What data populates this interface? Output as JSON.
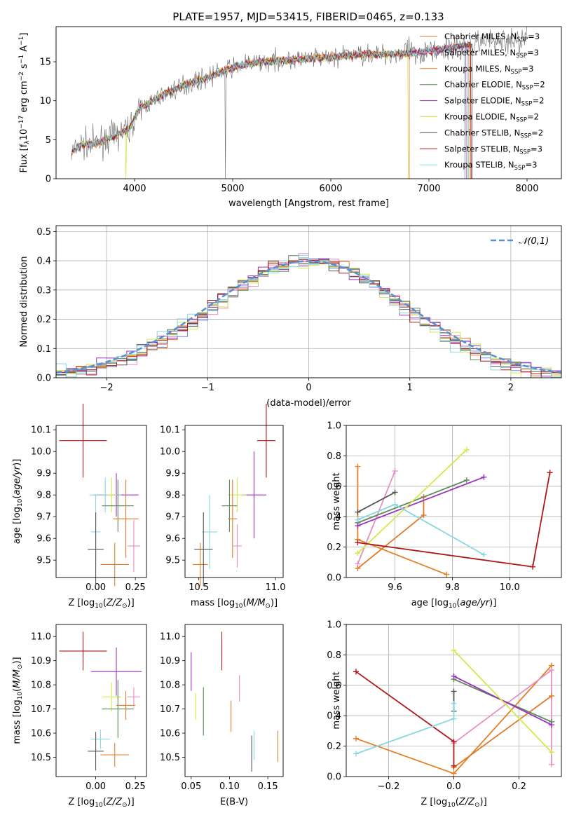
{
  "figure": {
    "title": "PLATE=1957, MJD=53415, FIBERID=0465, z=0.133"
  },
  "models": [
    {
      "name": "Chabrier MILES",
      "nssp": "3",
      "color": "#e67e22"
    },
    {
      "name": "Salpeter MILES",
      "nssp": "3",
      "color": "#e88fc4"
    },
    {
      "name": "Kroupa MILES",
      "nssp": "3",
      "color": "#e07b2a"
    },
    {
      "name": "Chabrier ELODIE",
      "nssp": "2",
      "color": "#5a8a5a"
    },
    {
      "name": "Salpeter ELODIE",
      "nssp": "2",
      "color": "#9b30c0"
    },
    {
      "name": "Kroupa ELODIE",
      "nssp": "2",
      "color": "#d4e84a"
    },
    {
      "name": "Chabrier STELIB",
      "nssp": "2",
      "color": "#555555"
    },
    {
      "name": "Salpeter STELIB",
      "nssp": "3",
      "color": "#b01818"
    },
    {
      "name": "Kroupa STELIB",
      "nssp": "3",
      "color": "#88d8e0"
    }
  ],
  "chart_data": [
    {
      "id": "spectrum",
      "type": "line",
      "xlabel": "wavelength [Angstrom, rest frame]",
      "ylabel": "Flux [f_λ10^-17 erg cm^-2 s^-1 A^-1]",
      "xlim": [
        3200,
        8350
      ],
      "ylim": [
        0,
        19.5
      ],
      "xticks": [
        4000,
        5000,
        6000,
        7000,
        8000
      ],
      "yticks": [
        0,
        5,
        10,
        15
      ],
      "grid": false,
      "legend": "top-right",
      "continuum": [
        [
          3350,
          3.2
        ],
        [
          3450,
          4.3
        ],
        [
          3600,
          4.5
        ],
        [
          3800,
          5.5
        ],
        [
          3950,
          6.5
        ],
        [
          4050,
          9.0
        ],
        [
          4300,
          10.8
        ],
        [
          4500,
          12.0
        ],
        [
          4700,
          12.8
        ],
        [
          4900,
          13.8
        ],
        [
          5100,
          14.6
        ],
        [
          5300,
          15.0
        ],
        [
          5500,
          15.2
        ],
        [
          5700,
          15.3
        ],
        [
          5900,
          15.5
        ],
        [
          6100,
          15.7
        ],
        [
          6300,
          15.9
        ],
        [
          6500,
          16.0
        ],
        [
          6700,
          16.0
        ],
        [
          6900,
          16.2
        ],
        [
          7100,
          16.5
        ],
        [
          7300,
          17.0
        ],
        [
          7500,
          17.3
        ],
        [
          7700,
          17.6
        ],
        [
          7900,
          17.8
        ],
        [
          8000,
          17.9
        ]
      ]
    },
    {
      "id": "residuals",
      "type": "histogram",
      "xlabel": "(data-model)/error",
      "ylabel": "Normed distribution",
      "xlim": [
        -2.5,
        2.5
      ],
      "ylim": [
        0,
        0.52
      ],
      "xticks": [
        -2,
        -1,
        0,
        1,
        2
      ],
      "yticks": [
        0.0,
        0.1,
        0.2,
        0.3,
        0.4,
        0.5
      ],
      "grid": true,
      "reference_label": "𝒩(0,1)",
      "legend": "top-right"
    },
    {
      "id": "age_vs_Z",
      "type": "errorbar",
      "xlabel": "Z [log10(Z/Z⊙)]",
      "ylabel": "age  [log10(age/yr)]",
      "xlim": [
        -0.25,
        0.32
      ],
      "ylim": [
        9.42,
        10.12
      ],
      "xticks": [
        0.0,
        0.25
      ],
      "yticks": [
        9.5,
        9.6,
        9.7,
        9.8,
        9.9,
        10.0,
        10.1
      ],
      "points": [
        {
          "x": -0.08,
          "y": 10.05,
          "xerr": 0.15,
          "yerr": 0.17,
          "model": 7
        },
        {
          "x": 0.13,
          "y": 9.8,
          "xerr": 0.14,
          "yerr": 0.1,
          "model": 4
        },
        {
          "x": 0.06,
          "y": 9.8,
          "xerr": 0.1,
          "yerr": 0.08,
          "model": 8
        },
        {
          "x": 0.1,
          "y": 9.8,
          "xerr": 0.03,
          "yerr": 0.08,
          "model": 5
        },
        {
          "x": 0.14,
          "y": 9.75,
          "xerr": 0.1,
          "yerr": 0.12,
          "model": 3
        },
        {
          "x": 0.19,
          "y": 9.69,
          "xerr": 0.08,
          "yerr": 0.18,
          "model": 2
        },
        {
          "x": 0.24,
          "y": 9.565,
          "xerr": 0.04,
          "yerr": 0.12,
          "model": 1
        },
        {
          "x": 0.0,
          "y": 9.63,
          "xerr": 0.03,
          "yerr": 0.17,
          "model": 8
        },
        {
          "x": 0.12,
          "y": 9.48,
          "xerr": 0.09,
          "yerr": 0.1,
          "model": 0
        },
        {
          "x": 0.0,
          "y": 9.55,
          "xerr": 0.05,
          "yerr": 0.17,
          "model": 6
        }
      ]
    },
    {
      "id": "age_vs_mass",
      "type": "errorbar",
      "xlabel": "mass [log10(M/M⊙)]",
      "ylabel": "",
      "xlim": [
        10.41,
        11.05
      ],
      "ylim": [
        9.42,
        10.12
      ],
      "xticks": [
        10.5,
        11.0
      ],
      "yticks": [
        9.5,
        9.6,
        9.7,
        9.8,
        9.9,
        10.0,
        10.1
      ],
      "points": [
        {
          "x": 10.94,
          "y": 10.05,
          "xerr": 0.06,
          "yerr": 0.17,
          "model": 7
        },
        {
          "x": 10.86,
          "y": 9.8,
          "xerr": 0.08,
          "yerr": 0.2,
          "model": 4
        },
        {
          "x": 10.75,
          "y": 9.8,
          "xerr": 0.06,
          "yerr": 0.08,
          "model": 5
        },
        {
          "x": 10.7,
          "y": 9.75,
          "xerr": 0.05,
          "yerr": 0.12,
          "model": 3
        },
        {
          "x": 10.72,
          "y": 9.69,
          "xerr": 0.03,
          "yerr": 0.18,
          "model": 2
        },
        {
          "x": 10.75,
          "y": 9.565,
          "xerr": 0.03,
          "yerr": 0.1,
          "model": 1
        },
        {
          "x": 10.57,
          "y": 9.63,
          "xerr": 0.05,
          "yerr": 0.17,
          "model": 8
        },
        {
          "x": 10.51,
          "y": 9.48,
          "xerr": 0.05,
          "yerr": 0.1,
          "model": 0
        },
        {
          "x": 10.53,
          "y": 9.55,
          "xerr": 0.06,
          "yerr": 0.17,
          "model": 6
        }
      ]
    },
    {
      "id": "weight_vs_age",
      "type": "line",
      "xlabel": "age  [log10(age/yr)]",
      "ylabel": "mass weight",
      "xlim": [
        9.43,
        10.18
      ],
      "ylim": [
        0,
        1
      ],
      "xticks": [
        9.6,
        9.8,
        10.0
      ],
      "yticks": [
        0.0,
        0.2,
        0.4,
        0.6,
        0.8,
        1.0
      ],
      "grid": true,
      "series": [
        {
          "model": 0,
          "points": [
            [
              9.47,
              0.73
            ],
            [
              9.47,
              0.25
            ],
            [
              9.78,
              0.02
            ]
          ]
        },
        {
          "model": 1,
          "points": [
            [
              9.47,
              0.09
            ],
            [
              9.6,
              0.7
            ]
          ]
        },
        {
          "model": 2,
          "points": [
            [
              9.47,
              0.06
            ],
            [
              9.7,
              0.41
            ],
            [
              9.7,
              0.53
            ]
          ]
        },
        {
          "model": 3,
          "points": [
            [
              9.47,
              0.36
            ],
            [
              9.85,
              0.64
            ]
          ]
        },
        {
          "model": 4,
          "points": [
            [
              9.47,
              0.34
            ],
            [
              9.91,
              0.66
            ]
          ]
        },
        {
          "model": 5,
          "points": [
            [
              9.47,
              0.16
            ],
            [
              9.85,
              0.84
            ]
          ]
        },
        {
          "model": 6,
          "points": [
            [
              9.47,
              0.43
            ],
            [
              9.6,
              0.56
            ]
          ]
        },
        {
          "model": 7,
          "points": [
            [
              9.47,
              0.23
            ],
            [
              10.08,
              0.07
            ],
            [
              10.14,
              0.69
            ]
          ]
        },
        {
          "model": 8,
          "points": [
            [
              9.47,
              0.38
            ],
            [
              9.6,
              0.48
            ],
            [
              9.91,
              0.15
            ]
          ]
        }
      ]
    },
    {
      "id": "mass_vs_Z",
      "type": "errorbar",
      "xlabel": "Z [log10(Z/Z⊙)]",
      "ylabel": "mass [log10(M/M⊙)]",
      "xlim": [
        -0.25,
        0.32
      ],
      "ylim": [
        10.42,
        11.05
      ],
      "xticks": [
        0.0,
        0.25
      ],
      "yticks": [
        10.5,
        10.6,
        10.7,
        10.8,
        10.9,
        11.0
      ],
      "points": [
        {
          "x": -0.08,
          "y": 10.94,
          "xerr": 0.15,
          "yerr": 0.08,
          "model": 7
        },
        {
          "x": 0.13,
          "y": 10.855,
          "xerr": 0.16,
          "yerr": 0.1,
          "model": 4
        },
        {
          "x": 0.1,
          "y": 10.75,
          "xerr": 0.06,
          "yerr": 0.06,
          "model": 5
        },
        {
          "x": 0.14,
          "y": 10.7,
          "xerr": 0.1,
          "yerr": 0.12,
          "model": 3
        },
        {
          "x": 0.19,
          "y": 10.715,
          "xerr": 0.06,
          "yerr": 0.06,
          "model": 2
        },
        {
          "x": 0.24,
          "y": 10.75,
          "xerr": 0.04,
          "yerr": 0.04,
          "model": 1
        },
        {
          "x": 0.03,
          "y": 10.575,
          "xerr": 0.06,
          "yerr": 0.04,
          "model": 8
        },
        {
          "x": 0.12,
          "y": 10.51,
          "xerr": 0.09,
          "yerr": 0.05,
          "model": 0
        },
        {
          "x": 0.0,
          "y": 10.525,
          "xerr": 0.05,
          "yerr": 0.08,
          "model": 6
        }
      ]
    },
    {
      "id": "mass_vs_ebv",
      "type": "errorbar",
      "xlabel": "E(B-V)",
      "ylabel": "",
      "xlim": [
        0.042,
        0.17
      ],
      "ylim": [
        10.42,
        11.05
      ],
      "xticks": [
        0.05,
        0.1,
        0.15
      ],
      "yticks": [
        10.5,
        10.6,
        10.7,
        10.8,
        10.9,
        11.0
      ],
      "points": [
        {
          "x": 0.09,
          "y": 10.94,
          "xerr": 0.0,
          "yerr": 0.08,
          "model": 7
        },
        {
          "x": 0.05,
          "y": 10.855,
          "xerr": 0.0,
          "yerr": 0.08,
          "model": 4
        },
        {
          "x": 0.113,
          "y": 10.785,
          "xerr": 0.0,
          "yerr": 0.055,
          "model": 1
        },
        {
          "x": 0.056,
          "y": 10.71,
          "xerr": 0.0,
          "yerr": 0.055,
          "model": 5
        },
        {
          "x": 0.066,
          "y": 10.69,
          "xerr": 0.0,
          "yerr": 0.1,
          "model": 3
        },
        {
          "x": 0.102,
          "y": 10.67,
          "xerr": 0.0,
          "yerr": 0.065,
          "model": 2
        },
        {
          "x": 0.132,
          "y": 10.55,
          "xerr": 0.0,
          "yerr": 0.06,
          "model": 8
        },
        {
          "x": 0.129,
          "y": 10.515,
          "xerr": 0.0,
          "yerr": 0.075,
          "model": 6
        },
        {
          "x": 0.163,
          "y": 10.545,
          "xerr": 0.0,
          "yerr": 0.065,
          "model": 0
        }
      ]
    },
    {
      "id": "weight_vs_Z",
      "type": "line",
      "xlabel": "Z [log10(Z/Z⊙)]",
      "ylabel": "mass weight",
      "xlim": [
        -0.33,
        0.33
      ],
      "ylim": [
        0,
        1
      ],
      "xticks": [
        -0.2,
        0.0,
        0.2
      ],
      "yticks": [
        0.0,
        0.2,
        0.4,
        0.6,
        0.8,
        1.0
      ],
      "grid": true,
      "series": [
        {
          "model": 0,
          "points": [
            [
              -0.3,
              0.25
            ],
            [
              0.0,
              0.02
            ],
            [
              0.3,
              0.73
            ]
          ]
        },
        {
          "model": 1,
          "points": [
            [
              0.0,
              0.22
            ],
            [
              0.3,
              0.7
            ],
            [
              0.3,
              0.08
            ]
          ]
        },
        {
          "model": 2,
          "points": [
            [
              0.0,
              0.06
            ],
            [
              0.3,
              0.53
            ]
          ]
        },
        {
          "model": 3,
          "points": [
            [
              0.0,
              0.64
            ],
            [
              0.3,
              0.36
            ]
          ]
        },
        {
          "model": 4,
          "points": [
            [
              0.0,
              0.66
            ],
            [
              0.3,
              0.34
            ]
          ]
        },
        {
          "model": 5,
          "points": [
            [
              0.0,
              0.83
            ],
            [
              0.3,
              0.16
            ]
          ]
        },
        {
          "model": 6,
          "points": [
            [
              0.0,
              0.56
            ],
            [
              0.0,
              0.43
            ]
          ]
        },
        {
          "model": 7,
          "points": [
            [
              -0.3,
              0.69
            ],
            [
              0.0,
              0.23
            ],
            [
              0.0,
              0.07
            ]
          ]
        },
        {
          "model": 8,
          "points": [
            [
              -0.3,
              0.15
            ],
            [
              0.0,
              0.38
            ],
            [
              0.0,
              0.48
            ]
          ]
        }
      ]
    }
  ]
}
